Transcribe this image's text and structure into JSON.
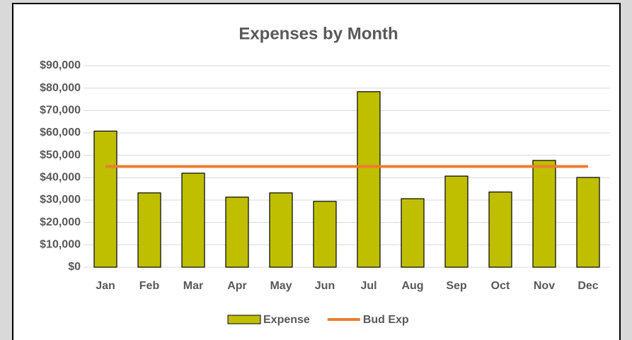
{
  "chart_data": {
    "type": "bar_line",
    "title": "Expenses by Month",
    "categories": [
      "Jan",
      "Feb",
      "Mar",
      "Apr",
      "May",
      "Jun",
      "Jul",
      "Aug",
      "Sep",
      "Oct",
      "Nov",
      "Dec"
    ],
    "series": [
      {
        "name": "Expense",
        "type": "bar",
        "color": "#bfbf00",
        "values": [
          60800,
          33200,
          42000,
          31300,
          33200,
          29400,
          78400,
          30600,
          40700,
          33600,
          47700,
          40100
        ]
      },
      {
        "name": "Bud Exp",
        "type": "line",
        "color": "#ed7d31",
        "values": [
          45000,
          45000,
          45000,
          45000,
          45000,
          45000,
          45000,
          45000,
          45000,
          45000,
          45000,
          45000
        ]
      }
    ],
    "ylim": [
      0,
      90000
    ],
    "yticks": [
      {
        "value": 0,
        "label": "$0"
      },
      {
        "value": 10000,
        "label": "$10,000"
      },
      {
        "value": 20000,
        "label": "$20,000"
      },
      {
        "value": 30000,
        "label": "$30,000"
      },
      {
        "value": 40000,
        "label": "$40,000"
      },
      {
        "value": 50000,
        "label": "$50,000"
      },
      {
        "value": 60000,
        "label": "$60,000"
      },
      {
        "value": 70000,
        "label": "$70,000"
      },
      {
        "value": 80000,
        "label": "$80,000"
      },
      {
        "value": 90000,
        "label": "$90,000"
      }
    ],
    "grid": true,
    "legend": "bottom"
  }
}
